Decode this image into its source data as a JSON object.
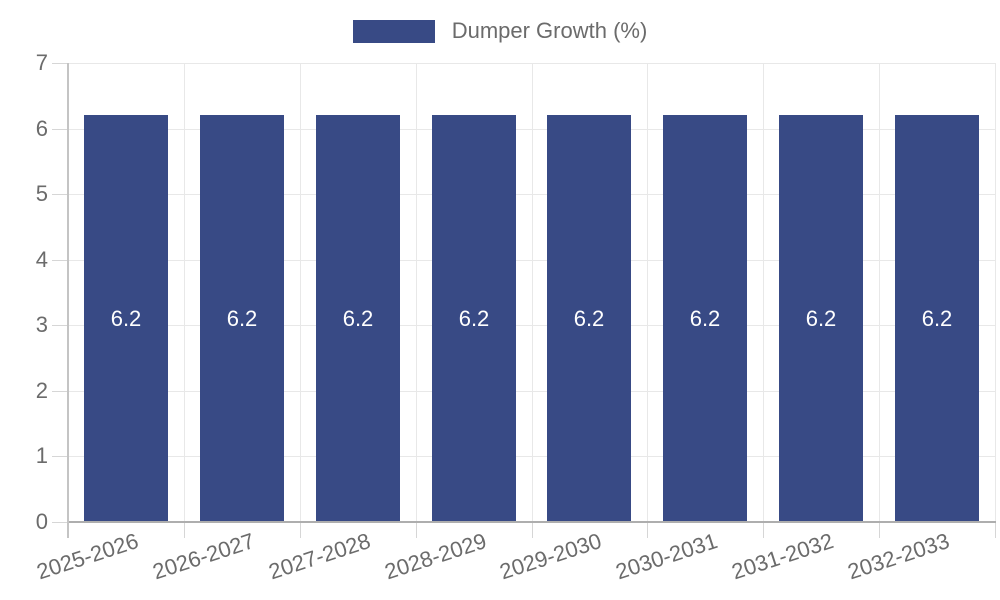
{
  "legend": {
    "label": "Dumper Growth (%)"
  },
  "colors": {
    "bar": "#384A85",
    "bar_value_text": "#ffffff",
    "axis_text": "#6b6b6b",
    "grid": "#e8e8e8",
    "tick": "#d6d6d6",
    "x_axis_line": "#aeaeae",
    "y_axis_line": "#c4c4c4"
  },
  "chart_data": {
    "type": "bar",
    "title": "Dumper Growth (%)",
    "categories": [
      "2025-2026",
      "2026-2027",
      "2027-2028",
      "2028-2029",
      "2029-2030",
      "2030-2031",
      "2031-2032",
      "2032-2033"
    ],
    "values": [
      6.2,
      6.2,
      6.2,
      6.2,
      6.2,
      6.2,
      6.2,
      6.2
    ],
    "bar_labels": [
      "6.2",
      "6.2",
      "6.2",
      "6.2",
      "6.2",
      "6.2",
      "6.2",
      "6.2"
    ],
    "xlabel": "",
    "ylabel": "",
    "ylim": [
      0,
      7
    ],
    "yticks": [
      0,
      1,
      2,
      3,
      4,
      5,
      6,
      7
    ],
    "grid": true,
    "legend_position": "top",
    "legend_entries": [
      "Dumper Growth (%)"
    ]
  }
}
